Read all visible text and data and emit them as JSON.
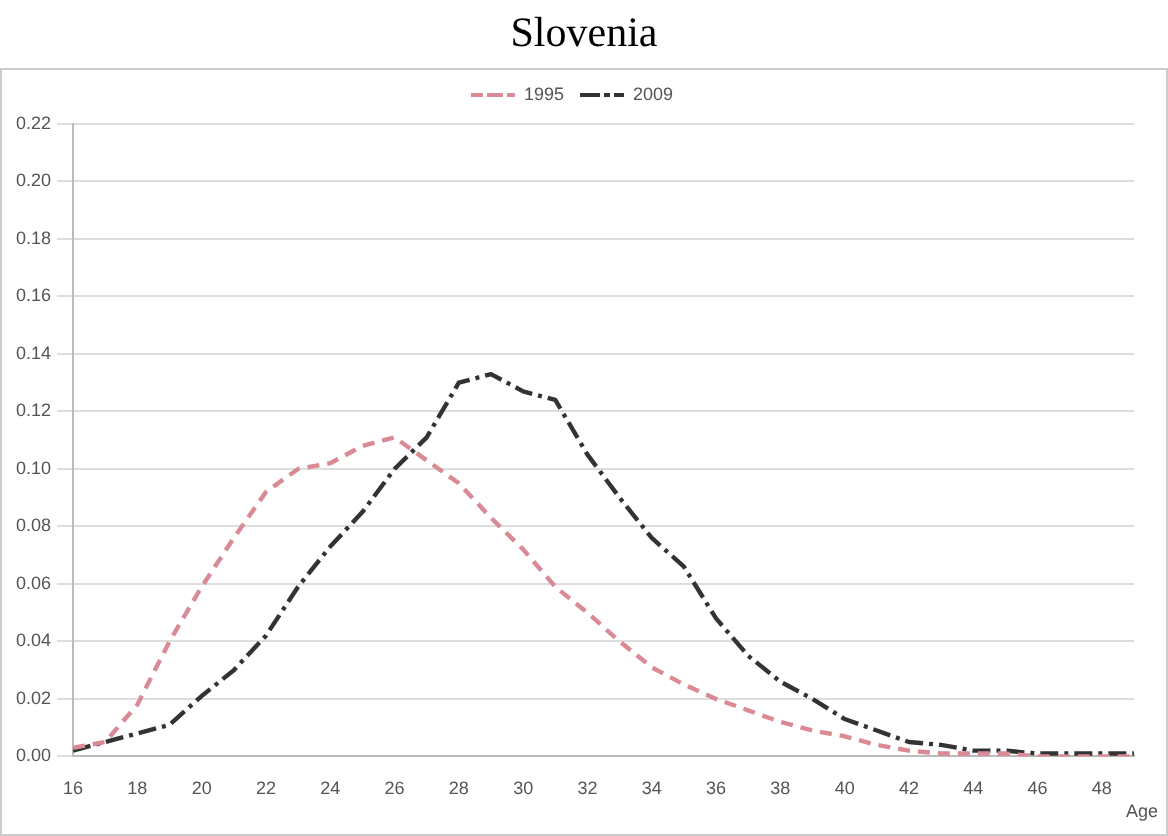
{
  "chart_data": {
    "type": "line",
    "title": "Slovenia",
    "xlabel": "Age",
    "x": [
      16,
      17,
      18,
      19,
      20,
      21,
      22,
      23,
      24,
      25,
      26,
      27,
      28,
      29,
      30,
      31,
      32,
      33,
      34,
      35,
      36,
      37,
      38,
      39,
      40,
      41,
      42,
      43,
      44,
      45,
      46,
      47,
      48,
      49
    ],
    "series": [
      {
        "name": "1995",
        "color": "#d98a94",
        "line_style": "dashed",
        "values": [
          0.003,
          0.005,
          0.018,
          0.04,
          0.059,
          0.076,
          0.092,
          0.1,
          0.102,
          0.108,
          0.111,
          0.103,
          0.095,
          0.083,
          0.072,
          0.059,
          0.05,
          0.04,
          0.031,
          0.025,
          0.02,
          0.016,
          0.012,
          0.009,
          0.007,
          0.004,
          0.002,
          0.001,
          0.001,
          0.001,
          0,
          0,
          0,
          0
        ]
      },
      {
        "name": "2009",
        "color": "#333333",
        "line_style": "dashdot",
        "values": [
          0.002,
          0.005,
          0.008,
          0.011,
          0.021,
          0.03,
          0.042,
          0.059,
          0.073,
          0.085,
          0.1,
          0.111,
          0.13,
          0.133,
          0.127,
          0.124,
          0.105,
          0.09,
          0.076,
          0.066,
          0.048,
          0.035,
          0.026,
          0.02,
          0.013,
          0.009,
          0.005,
          0.004,
          0.002,
          0.002,
          0.001,
          0.001,
          0.001,
          0.001
        ]
      }
    ],
    "xlim": [
      16,
      49
    ],
    "xticks": [
      16,
      18,
      20,
      22,
      24,
      26,
      28,
      30,
      32,
      34,
      36,
      38,
      40,
      42,
      44,
      46,
      48
    ],
    "ylim": [
      0,
      0.22
    ],
    "yticks": [
      {
        "value": 0,
        "label": "0.00"
      },
      {
        "value": 0.02,
        "label": "0.02"
      },
      {
        "value": 0.04,
        "label": "0.04"
      },
      {
        "value": 0.06,
        "label": "0.06"
      },
      {
        "value": 0.08,
        "label": "0.08"
      },
      {
        "value": 0.1,
        "label": "0.10"
      },
      {
        "value": 0.12,
        "label": "0.12"
      },
      {
        "value": 0.14,
        "label": "0.14"
      },
      {
        "value": 0.16,
        "label": "0.16"
      },
      {
        "value": 0.18,
        "label": "0.18"
      },
      {
        "value": 0.2,
        "label": "0.20"
      },
      {
        "value": 0.22,
        "label": "0.22"
      }
    ],
    "grid": "y",
    "legend": "top",
    "marker": "none"
  }
}
